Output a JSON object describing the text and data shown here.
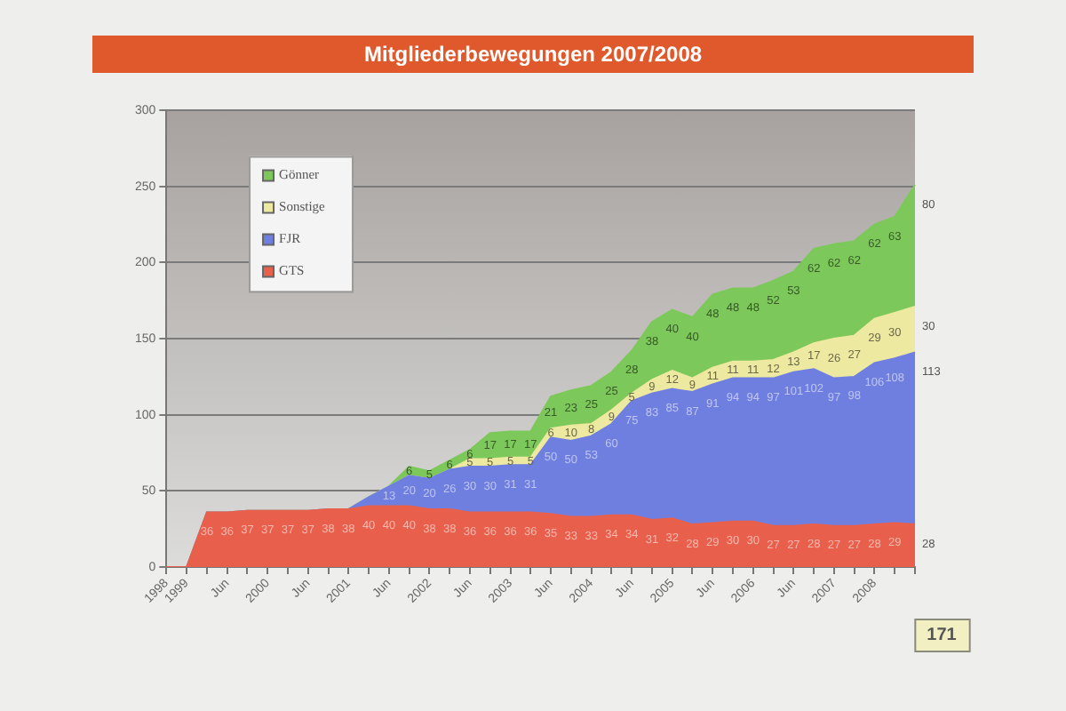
{
  "chart_data": {
    "type": "area",
    "title": "Mitgliederbewegungen 2007/2008",
    "categories": [
      "1998",
      "1999",
      null,
      "Jun",
      null,
      "2000",
      null,
      "Jun",
      null,
      "2001",
      null,
      "Jun",
      null,
      "2002",
      null,
      "Jun",
      null,
      "2003",
      null,
      "Jun",
      null,
      "2004",
      null,
      "Jun",
      null,
      "2005",
      null,
      "Jun",
      null,
      "2006",
      null,
      "Jun",
      null,
      "2007",
      null,
      "2008",
      null,
      null
    ],
    "series": [
      {
        "name": "GTS",
        "color": "#e8604c",
        "values": [
          0,
          0,
          36,
          36,
          37,
          37,
          37,
          37,
          38,
          38,
          40,
          40,
          40,
          38,
          38,
          36,
          36,
          36,
          36,
          35,
          33,
          33,
          34,
          34,
          31,
          32,
          28,
          29,
          30,
          30,
          27,
          27,
          28,
          27,
          27,
          28,
          29,
          28
        ],
        "value_labels": [
          null,
          null,
          "36",
          "36",
          "37",
          "37",
          "37",
          "37",
          "38",
          "38",
          "40",
          "40",
          "40",
          "38",
          "38",
          "36",
          "36",
          "36",
          "36",
          "35",
          "33",
          "33",
          "34",
          "34",
          "31",
          "32",
          "28",
          "29",
          "30",
          "30",
          "27",
          "27",
          "28",
          "27",
          "27",
          "28",
          "29",
          "28"
        ]
      },
      {
        "name": "FJR",
        "color": "#6f7fe0",
        "values": [
          0,
          0,
          0,
          0,
          0,
          0,
          0,
          0,
          0,
          0,
          6,
          13,
          20,
          20,
          26,
          30,
          30,
          31,
          31,
          50,
          50,
          53,
          60,
          75,
          83,
          85,
          87,
          91,
          94,
          94,
          97,
          101,
          102,
          97,
          98,
          106,
          108,
          113
        ],
        "value_labels": [
          null,
          null,
          null,
          null,
          null,
          null,
          null,
          null,
          null,
          null,
          null,
          "13",
          "20",
          "20",
          "26",
          "30",
          "30",
          "31",
          "31",
          "50",
          "50",
          "53",
          "60",
          "75",
          "83",
          "85",
          "87",
          "91",
          "94",
          "94",
          "97",
          "101",
          "102",
          "97",
          "98",
          "106",
          "108",
          "113"
        ]
      },
      {
        "name": "Sonstige",
        "color": "#eee9a0",
        "values": [
          0,
          0,
          0,
          0,
          0,
          0,
          0,
          0,
          0,
          0,
          0,
          0,
          0,
          0,
          0,
          5,
          5,
          5,
          5,
          6,
          10,
          8,
          9,
          5,
          9,
          12,
          9,
          11,
          11,
          11,
          12,
          13,
          17,
          26,
          27,
          29,
          30,
          30
        ],
        "value_labels": [
          null,
          null,
          null,
          null,
          null,
          null,
          null,
          null,
          null,
          null,
          null,
          null,
          null,
          null,
          null,
          "5",
          "5",
          "5",
          "5",
          "6",
          "10",
          "8",
          "9",
          "5",
          "9",
          "12",
          "9",
          "11",
          "11",
          "11",
          "12",
          "13",
          "17",
          "26",
          "27",
          "29",
          "30",
          "30"
        ]
      },
      {
        "name": "Gönner",
        "color": "#7cc85a",
        "values": [
          0,
          0,
          0,
          0,
          0,
          0,
          0,
          0,
          0,
          0,
          0,
          0,
          6,
          5,
          6,
          6,
          17,
          17,
          17,
          21,
          23,
          25,
          25,
          28,
          38,
          40,
          40,
          48,
          48,
          48,
          52,
          53,
          62,
          62,
          62,
          62,
          63,
          80
        ],
        "value_labels": [
          null,
          null,
          null,
          null,
          null,
          null,
          null,
          null,
          null,
          null,
          null,
          null,
          "6",
          "5",
          "6",
          "6",
          "17",
          "17",
          "17",
          "21",
          "23",
          "25",
          "25",
          "28",
          "38",
          "40",
          "40",
          "48",
          "48",
          "48",
          "52",
          "53",
          "62",
          "62",
          "62",
          "62",
          "63",
          "80"
        ]
      }
    ],
    "stacked": true,
    "ylim": [
      0,
      300
    ],
    "yticks": [
      0,
      50,
      100,
      150,
      200,
      250,
      300
    ],
    "grid": "y",
    "legend": "top left",
    "annotations": [
      "171"
    ]
  }
}
